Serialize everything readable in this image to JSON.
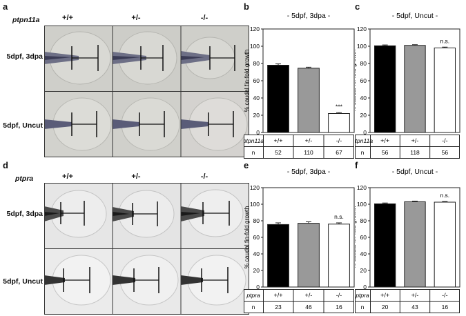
{
  "panels": {
    "a": {
      "letter": "a",
      "gene": "ptpn11a",
      "genotypes": [
        "+/+",
        "+/-",
        "-/-"
      ],
      "rows": [
        "5dpf, 3dpa",
        "5dpf, Uncut"
      ]
    },
    "d": {
      "letter": "d",
      "gene": "ptpra",
      "genotypes": [
        "+/+",
        "+/-",
        "-/-"
      ],
      "rows": [
        "5dpf, 3dpa",
        "5dpf, Uncut"
      ]
    }
  },
  "chart_data": [
    {
      "id": "b",
      "letter": "b",
      "type": "bar",
      "title": "- 5dpf, 3dpa -",
      "ylabel": "% caudal fin-fold growth",
      "ylim": [
        0,
        120
      ],
      "yticks": [
        "0",
        "20",
        "40",
        "60",
        "80",
        "100",
        "120"
      ],
      "categories": [
        "+/+",
        "+/-",
        "-/-"
      ],
      "values": [
        78,
        74.5,
        22
      ],
      "errors": [
        1.5,
        1.2,
        1.0
      ],
      "colors": [
        "#000000",
        "#999999",
        "#ffffff"
      ],
      "annotations": [
        "",
        "",
        "***"
      ],
      "table_gene": "ptpn11a",
      "n_label": "n",
      "n": [
        "52",
        "110",
        "67"
      ]
    },
    {
      "id": "c",
      "letter": "c",
      "type": "bar",
      "title": "- 5dpf, Uncut -",
      "ylabel": "% caudal fin-fold growth",
      "ylim": [
        0,
        120
      ],
      "yticks": [
        "0",
        "20",
        "40",
        "60",
        "80",
        "100",
        "120"
      ],
      "categories": [
        "+/+",
        "+/-",
        "-/-"
      ],
      "values": [
        100.5,
        101,
        98
      ],
      "errors": [
        1.0,
        0.8,
        1.0
      ],
      "colors": [
        "#000000",
        "#999999",
        "#ffffff"
      ],
      "annotations": [
        "",
        "",
        "n.s."
      ],
      "table_gene": "ptpn11a",
      "n_label": "n",
      "n": [
        "56",
        "118",
        "56"
      ]
    },
    {
      "id": "e",
      "letter": "e",
      "type": "bar",
      "title": "- 5dpf, 3dpa -",
      "ylabel": "% caudal fin-fold growth",
      "ylim": [
        0,
        120
      ],
      "yticks": [
        "0",
        "20",
        "40",
        "60",
        "80",
        "100",
        "120"
      ],
      "categories": [
        "+/+",
        "+/-",
        "-/-"
      ],
      "values": [
        75.5,
        77,
        76
      ],
      "errors": [
        2.0,
        1.8,
        1.5
      ],
      "colors": [
        "#000000",
        "#999999",
        "#ffffff"
      ],
      "annotations": [
        "",
        "",
        "n.s."
      ],
      "table_gene": "ptpra",
      "n_label": "n",
      "n": [
        "23",
        "46",
        "16"
      ]
    },
    {
      "id": "f",
      "letter": "f",
      "type": "bar",
      "title": "- 5dpf, Uncut -",
      "ylabel": "% caudal fin-fold growth",
      "ylim": [
        0,
        120
      ],
      "yticks": [
        "0",
        "20",
        "40",
        "60",
        "80",
        "100",
        "120"
      ],
      "categories": [
        "+/+",
        "+/-",
        "-/-"
      ],
      "values": [
        100.5,
        103,
        102.5
      ],
      "errors": [
        1.0,
        0.8,
        0.8
      ],
      "colors": [
        "#000000",
        "#999999",
        "#ffffff"
      ],
      "annotations": [
        "",
        "",
        "n.s."
      ],
      "table_gene": "ptpra",
      "n_label": "n",
      "n": [
        "20",
        "43",
        "16"
      ]
    }
  ]
}
